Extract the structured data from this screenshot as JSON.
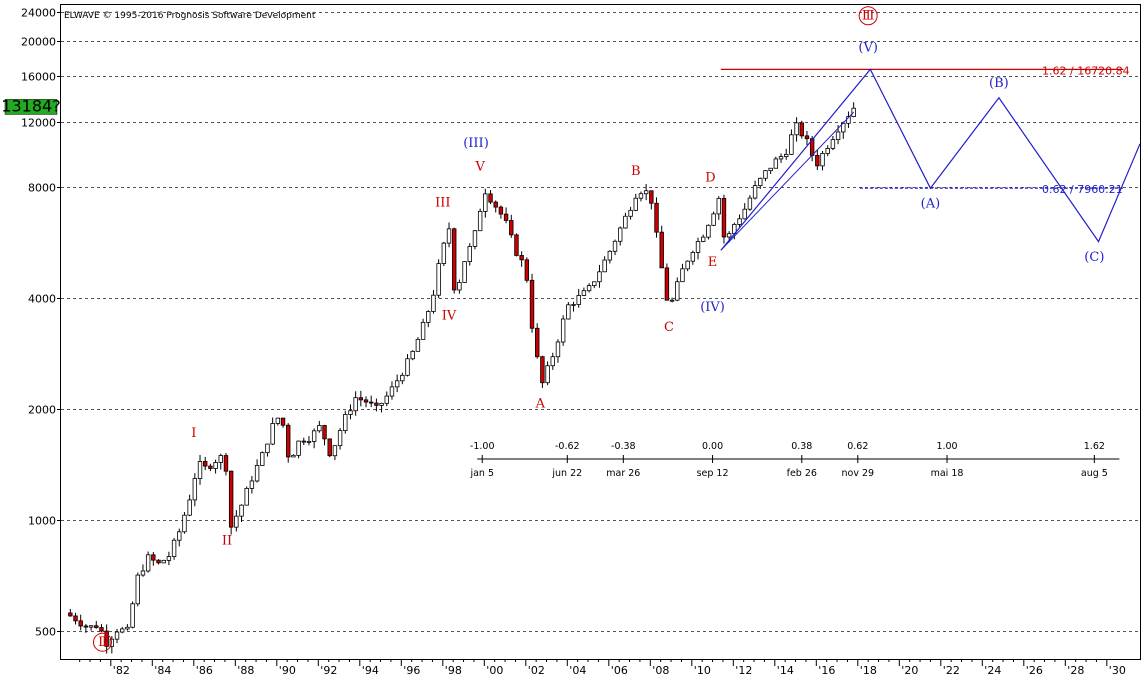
{
  "copyright": "ELWAVE © 1995-2016 Prognosis Software Development",
  "colors": {
    "grid": "#555555",
    "candle": "#000000",
    "bull_body": "#ffffff",
    "bear_body": "#cc0000",
    "wave_red": "#cc0000",
    "wave_blue": "#1f1fcc",
    "price_badge": "#22aa22"
  },
  "chart_data": {
    "type": "candlestick",
    "title": "",
    "yscale": "log",
    "ylim": [
      420,
      25000
    ],
    "xlim": [
      1979.6,
      2031.6
    ],
    "y_ticks": [
      {
        "value": 24000,
        "label": "24000"
      },
      {
        "value": 20000,
        "label": "20000"
      },
      {
        "value": 16000,
        "label": "16000"
      },
      {
        "value": 12000,
        "label": "12000"
      },
      {
        "value": 8000,
        "label": "8000"
      },
      {
        "value": 4000,
        "label": "4000"
      },
      {
        "value": 2000,
        "label": "2000"
      },
      {
        "value": 1000,
        "label": "1000"
      },
      {
        "value": 500,
        "label": "500"
      }
    ],
    "x_ticks": [
      {
        "value": 1982,
        "label": "'82"
      },
      {
        "value": 1984,
        "label": "'84"
      },
      {
        "value": 1986,
        "label": "'86"
      },
      {
        "value": 1988,
        "label": "'88"
      },
      {
        "value": 1990,
        "label": "'90"
      },
      {
        "value": 1992,
        "label": "'92"
      },
      {
        "value": 1994,
        "label": "'94"
      },
      {
        "value": 1996,
        "label": "'96"
      },
      {
        "value": 1998,
        "label": "'98"
      },
      {
        "value": 2000,
        "label": "'00"
      },
      {
        "value": 2002,
        "label": "'02"
      },
      {
        "value": 2004,
        "label": "'04"
      },
      {
        "value": 2006,
        "label": "'06"
      },
      {
        "value": 2008,
        "label": "'08"
      },
      {
        "value": 2010,
        "label": "'10"
      },
      {
        "value": 2012,
        "label": "'12"
      },
      {
        "value": 2014,
        "label": "'14"
      },
      {
        "value": 2016,
        "label": "'16"
      },
      {
        "value": 2018,
        "label": "'18"
      },
      {
        "value": 2020,
        "label": "'20"
      },
      {
        "value": 2022,
        "label": "'22"
      },
      {
        "value": 2024,
        "label": "'24"
      },
      {
        "value": 2026,
        "label": "'26"
      },
      {
        "value": 2028,
        "label": "'28"
      },
      {
        "value": 2030,
        "label": "'30"
      }
    ],
    "current_price": {
      "label": "13184?",
      "value": 13184
    },
    "price_path": [
      [
        1979.8,
        560
      ],
      [
        1980.3,
        540
      ],
      [
        1980.9,
        510
      ],
      [
        1981.4,
        520
      ],
      [
        1981.8,
        465
      ],
      [
        1982.3,
        505
      ],
      [
        1982.8,
        500
      ],
      [
        1983.3,
        700
      ],
      [
        1983.8,
        790
      ],
      [
        1984.3,
        760
      ],
      [
        1984.8,
        800
      ],
      [
        1985.3,
        930
      ],
      [
        1985.8,
        1150
      ],
      [
        1986.2,
        1420
      ],
      [
        1986.6,
        1380
      ],
      [
        1987.0,
        1450
      ],
      [
        1987.5,
        1500
      ],
      [
        1987.8,
        960
      ],
      [
        1988.3,
        1100
      ],
      [
        1988.8,
        1300
      ],
      [
        1989.3,
        1500
      ],
      [
        1989.8,
        1800
      ],
      [
        1990.2,
        1950
      ],
      [
        1990.6,
        1450
      ],
      [
        1991.1,
        1650
      ],
      [
        1991.6,
        1680
      ],
      [
        1992.1,
        1800
      ],
      [
        1992.6,
        1500
      ],
      [
        1993.2,
        1850
      ],
      [
        1993.8,
        2150
      ],
      [
        1994.3,
        2100
      ],
      [
        1994.8,
        2000
      ],
      [
        1995.4,
        2200
      ],
      [
        1996.0,
        2500
      ],
      [
        1996.5,
        2800
      ],
      [
        1997.0,
        3300
      ],
      [
        1997.5,
        4000
      ],
      [
        1997.9,
        5200
      ],
      [
        1998.3,
        6200
      ],
      [
        1998.6,
        4000
      ],
      [
        1999.0,
        5000
      ],
      [
        1999.5,
        5800
      ],
      [
        2000.0,
        7900
      ],
      [
        2000.5,
        7200
      ],
      [
        2001.0,
        6500
      ],
      [
        2001.5,
        5400
      ],
      [
        2002.0,
        4800
      ],
      [
        2002.4,
        3000
      ],
      [
        2002.8,
        2350
      ],
      [
        2003.4,
        2900
      ],
      [
        2004.0,
        3800
      ],
      [
        2004.5,
        4000
      ],
      [
        2005.0,
        4200
      ],
      [
        2005.5,
        4700
      ],
      [
        2006.0,
        5300
      ],
      [
        2006.5,
        6100
      ],
      [
        2007.0,
        7000
      ],
      [
        2007.4,
        7900
      ],
      [
        2008.0,
        7700
      ],
      [
        2008.4,
        5400
      ],
      [
        2008.9,
        3700
      ],
      [
        2009.5,
        4700
      ],
      [
        2010.0,
        5400
      ],
      [
        2010.5,
        5900
      ],
      [
        2011.0,
        6800
      ],
      [
        2011.3,
        7500
      ],
      [
        2011.6,
        5600
      ],
      [
        2012.0,
        6300
      ],
      [
        2012.5,
        6900
      ],
      [
        2013.0,
        7900
      ],
      [
        2013.5,
        8700
      ],
      [
        2014.0,
        9400
      ],
      [
        2014.5,
        9900
      ],
      [
        2015.0,
        11800
      ],
      [
        2015.5,
        10800
      ],
      [
        2016.0,
        9200
      ],
      [
        2016.5,
        10300
      ],
      [
        2017.0,
        11500
      ],
      [
        2017.5,
        12500
      ],
      [
        2017.8,
        13184
      ]
    ],
    "projection_path": [
      [
        2011.4,
        5400
      ],
      [
        2018.6,
        16720
      ],
      [
        2021.5,
        7960
      ],
      [
        2024.8,
        14000
      ],
      [
        2029.6,
        5700
      ],
      [
        2031.6,
        10500
      ]
    ],
    "channel_line": [
      [
        2011.4,
        5400
      ],
      [
        2017.8,
        12800
      ]
    ],
    "fib_lines": [
      {
        "label": "1.62 / 16720.84",
        "value": 16720.84,
        "x_start": 2011.4,
        "x_end": 2030.8,
        "color": "#cc0000",
        "style": "solid"
      },
      {
        "label": "0.62 / 7960.21",
        "value": 7960.21,
        "x_start": 2018.1,
        "x_end": 2030.8,
        "color": "#1f1fcc",
        "style": "dashed"
      }
    ],
    "wave_labels": [
      {
        "text": "Ⅱ",
        "x": 1981.6,
        "y": 455,
        "color": "red",
        "circled": true
      },
      {
        "text": "I",
        "x": 1986.0,
        "y": 1680,
        "color": "red"
      },
      {
        "text": "II",
        "x": 1987.6,
        "y": 860,
        "color": "red"
      },
      {
        "text": "III",
        "x": 1998.0,
        "y": 7100,
        "color": "red"
      },
      {
        "text": "IV",
        "x": 1998.3,
        "y": 3500,
        "color": "red"
      },
      {
        "text": "V",
        "x": 1999.8,
        "y": 8900,
        "color": "red"
      },
      {
        "text": "(III)",
        "x": 1999.6,
        "y": 10300,
        "color": "blue"
      },
      {
        "text": "A",
        "x": 2002.7,
        "y": 2020,
        "color": "red"
      },
      {
        "text": "B",
        "x": 2007.3,
        "y": 8650,
        "color": "red"
      },
      {
        "text": "C",
        "x": 2008.9,
        "y": 3260,
        "color": "red"
      },
      {
        "text": "D",
        "x": 2010.9,
        "y": 8300,
        "color": "red"
      },
      {
        "text": "E",
        "x": 2011.0,
        "y": 4900,
        "color": "red"
      },
      {
        "text": "(IV)",
        "x": 2011.0,
        "y": 3700,
        "color": "blue"
      },
      {
        "text": "(V)",
        "x": 2018.5,
        "y": 18700,
        "color": "blue"
      },
      {
        "text": "Ⅲ",
        "x": 2018.5,
        "y": 22800,
        "color": "red",
        "circled": true
      },
      {
        "text": "(A)",
        "x": 2021.5,
        "y": 7050,
        "color": "blue"
      },
      {
        "text": "(B)",
        "x": 2024.8,
        "y": 15000,
        "color": "blue"
      },
      {
        "text": "(C)",
        "x": 2029.4,
        "y": 5050,
        "color": "blue"
      }
    ],
    "time_ratios": [
      {
        "ratio": "-1.00",
        "date": "jan 5",
        "x": 1999.9
      },
      {
        "ratio": "-0.62",
        "date": "jun 22",
        "x": 2004.0
      },
      {
        "ratio": "-0.38",
        "date": "mar 26",
        "x": 2006.7
      },
      {
        "ratio": "0.00",
        "date": "sep 12",
        "x": 2011.0
      },
      {
        "ratio": "0.38",
        "date": "feb 26",
        "x": 2015.3
      },
      {
        "ratio": "0.62",
        "date": "nov 29",
        "x": 2018.0
      },
      {
        "ratio": "1.00",
        "date": "mai 18",
        "x": 2022.3
      },
      {
        "ratio": "1.62",
        "date": "aug 5",
        "x": 2029.4
      }
    ]
  }
}
